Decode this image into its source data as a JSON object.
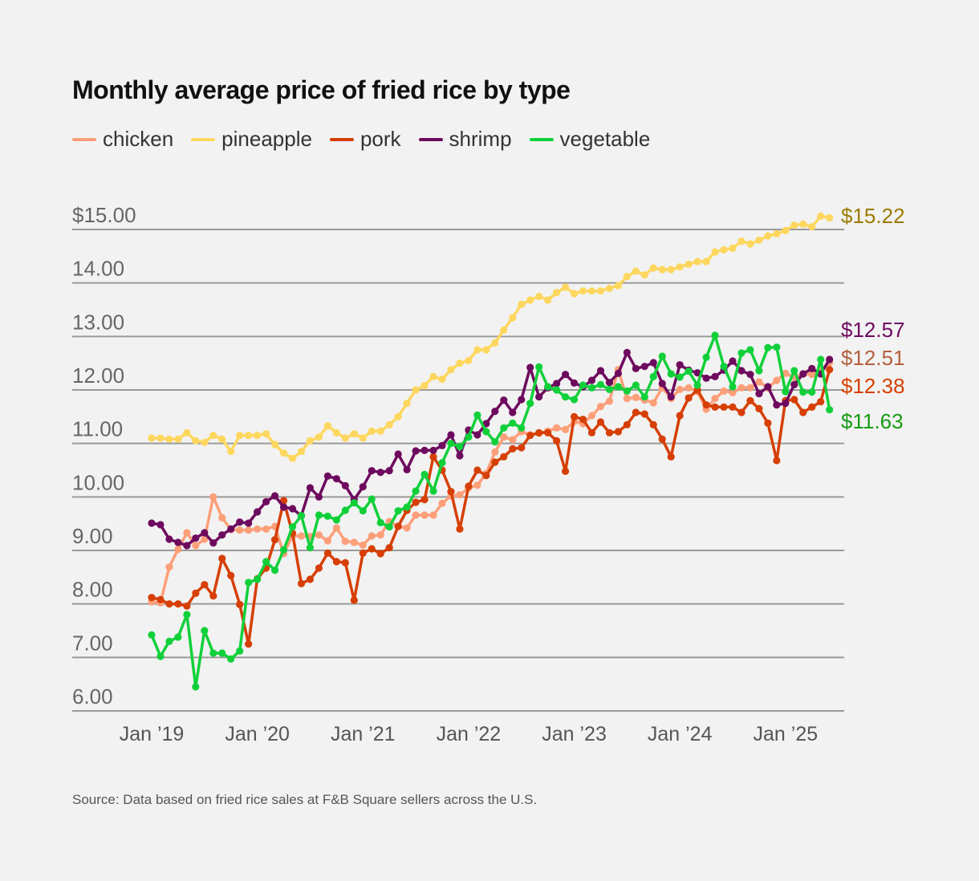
{
  "chart_data": {
    "type": "line",
    "title": "Monthly average price of fried rice by type",
    "source": "Source: Data based on fried rice sales at F&B Square sellers across the U.S.",
    "x_start": "2019-01",
    "x_end": "2025-06",
    "x_frequency": "monthly",
    "xticks": [
      "Jan ’19",
      "Jan ’20",
      "Jan ’21",
      "Jan ’22",
      "Jan ’23",
      "Jan ’24",
      "Jan ’25"
    ],
    "yticks": [
      "$15.00",
      "14.00",
      "13.00",
      "12.00",
      "11.00",
      "10.00",
      "9.00",
      "8.00",
      "7.00",
      "6.00"
    ],
    "ylim": [
      6,
      15
    ],
    "grid": true,
    "legend_placement": "top-left",
    "series": [
      {
        "name": "pineapple",
        "color": "#ffd75e",
        "label_color": "#9a7b00",
        "end_label": "$15.22",
        "values": [
          11.1,
          11.1,
          11.08,
          11.08,
          11.2,
          11.05,
          11.02,
          11.15,
          11.08,
          10.85,
          11.15,
          11.15,
          11.15,
          11.18,
          10.98,
          10.82,
          10.72,
          10.85,
          11.05,
          11.12,
          11.33,
          11.2,
          11.1,
          11.18,
          11.1,
          11.23,
          11.23,
          11.35,
          11.5,
          11.75,
          12.0,
          12.08,
          12.25,
          12.2,
          12.38,
          12.5,
          12.55,
          12.75,
          12.75,
          12.88,
          13.12,
          13.35,
          13.6,
          13.68,
          13.75,
          13.68,
          13.82,
          13.92,
          13.8,
          13.85,
          13.85,
          13.85,
          13.9,
          13.95,
          14.12,
          14.22,
          14.15,
          14.28,
          14.25,
          14.25,
          14.3,
          14.35,
          14.4,
          14.4,
          14.58,
          14.62,
          14.65,
          14.78,
          14.73,
          14.8,
          14.88,
          14.92,
          14.98,
          15.08,
          15.1,
          15.05,
          15.25,
          15.22
        ]
      },
      {
        "name": "chicken",
        "color": "#ff9f7a",
        "label_color": "#b2603e",
        "end_label": "$12.51",
        "values": [
          8.04,
          8.02,
          8.69,
          9.02,
          9.33,
          9.09,
          9.21,
          10.0,
          9.61,
          9.39,
          9.38,
          9.38,
          9.4,
          9.4,
          9.45,
          8.94,
          9.27,
          9.27,
          9.26,
          9.29,
          9.18,
          9.42,
          9.17,
          9.15,
          9.1,
          9.27,
          9.29,
          9.54,
          9.45,
          9.42,
          9.66,
          9.66,
          9.66,
          9.88,
          10.02,
          10.04,
          10.17,
          10.22,
          10.44,
          10.84,
          11.12,
          11.07,
          11.22,
          11.16,
          11.19,
          11.23,
          11.29,
          11.26,
          11.41,
          11.37,
          11.52,
          11.69,
          11.79,
          12.38,
          11.84,
          11.86,
          11.81,
          11.76,
          12.04,
          11.84,
          12.01,
          12.04,
          11.97,
          11.64,
          11.84,
          11.98,
          11.95,
          12.04,
          12.04,
          12.15,
          12.04,
          12.18,
          12.31,
          12.24,
          12.3,
          12.29,
          12.35,
          12.51
        ]
      },
      {
        "name": "pork",
        "color": "#d63f00",
        "label_color": "#d63f00",
        "end_label": "$12.38",
        "values": [
          8.12,
          8.08,
          8.0,
          8.0,
          7.96,
          8.2,
          8.36,
          8.15,
          8.85,
          8.53,
          7.99,
          7.25,
          8.47,
          8.67,
          9.2,
          9.93,
          9.32,
          8.38,
          8.46,
          8.67,
          8.95,
          8.79,
          8.77,
          8.07,
          8.95,
          9.03,
          8.94,
          9.05,
          9.45,
          9.75,
          9.9,
          9.95,
          10.75,
          10.5,
          10.1,
          9.4,
          10.2,
          10.5,
          10.4,
          10.65,
          10.75,
          10.9,
          10.92,
          11.15,
          11.2,
          11.2,
          11.05,
          10.48,
          11.5,
          11.45,
          11.2,
          11.4,
          11.2,
          11.22,
          11.35,
          11.58,
          11.55,
          11.35,
          11.08,
          10.75,
          11.52,
          11.85,
          12.0,
          11.72,
          11.68,
          11.68,
          11.68,
          11.58,
          11.8,
          11.65,
          11.38,
          10.68,
          11.8,
          11.82,
          11.58,
          11.68,
          11.78,
          12.38
        ]
      },
      {
        "name": "shrimp",
        "color": "#6e0a5e",
        "label_color": "#6e0a5e",
        "end_label": "$12.57",
        "values": [
          9.51,
          9.48,
          9.21,
          9.15,
          9.09,
          9.23,
          9.33,
          9.14,
          9.29,
          9.4,
          9.53,
          9.51,
          9.72,
          9.91,
          10.02,
          9.81,
          9.78,
          9.65,
          10.17,
          10.0,
          10.39,
          10.34,
          10.21,
          9.95,
          10.19,
          10.49,
          10.46,
          10.49,
          10.8,
          10.51,
          10.86,
          10.87,
          10.87,
          10.96,
          11.16,
          10.77,
          11.25,
          11.16,
          11.37,
          11.6,
          11.81,
          11.58,
          11.82,
          12.42,
          11.87,
          12.04,
          12.12,
          12.29,
          12.13,
          12.06,
          12.18,
          12.36,
          12.14,
          12.31,
          12.7,
          12.4,
          12.44,
          12.51,
          12.12,
          11.87,
          12.47,
          12.37,
          12.32,
          12.22,
          12.25,
          12.37,
          12.54,
          12.36,
          12.29,
          11.93,
          12.06,
          11.72,
          11.75,
          12.1,
          12.3,
          12.4,
          12.3,
          12.57
        ]
      },
      {
        "name": "vegetable",
        "color": "#10d03a",
        "label_color": "#159a15",
        "end_label": "$11.63",
        "values": [
          7.42,
          7.02,
          7.3,
          7.38,
          7.8,
          6.45,
          7.5,
          7.08,
          7.08,
          6.97,
          7.12,
          8.4,
          8.46,
          8.79,
          8.63,
          9.01,
          9.44,
          9.65,
          9.05,
          9.66,
          9.64,
          9.57,
          9.75,
          9.89,
          9.74,
          9.96,
          9.52,
          9.44,
          9.74,
          9.81,
          10.11,
          10.42,
          10.11,
          10.64,
          11.0,
          10.94,
          11.12,
          11.53,
          11.22,
          11.03,
          11.29,
          11.38,
          11.29,
          11.75,
          12.43,
          12.06,
          12.0,
          11.87,
          11.82,
          12.09,
          12.04,
          12.1,
          12.01,
          12.06,
          11.98,
          12.09,
          11.87,
          12.25,
          12.63,
          12.3,
          12.24,
          12.35,
          12.09,
          12.61,
          13.02,
          12.44,
          12.06,
          12.69,
          12.75,
          12.36,
          12.79,
          12.8,
          11.97,
          12.36,
          11.96,
          11.96,
          12.57,
          11.63
        ]
      }
    ],
    "legend_order": [
      "chicken",
      "pineapple",
      "pork",
      "shrimp",
      "vegetable"
    ]
  }
}
